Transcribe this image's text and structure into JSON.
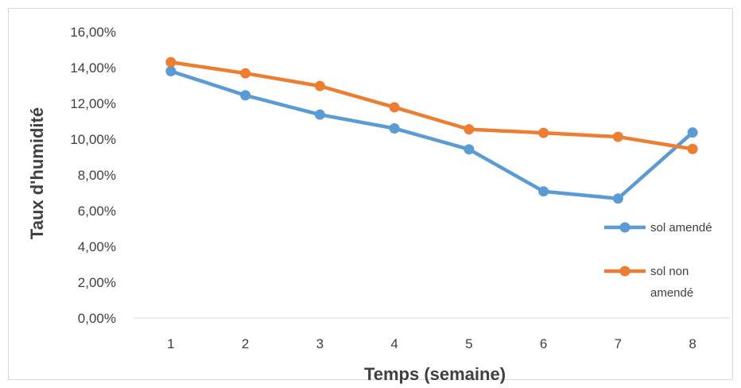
{
  "chart_data": {
    "type": "line",
    "title": "",
    "xlabel": "Temps (semaine)",
    "ylabel": "Taux d'humidité",
    "categories": [
      "1",
      "2",
      "3",
      "4",
      "5",
      "6",
      "7",
      "8"
    ],
    "ylim": [
      0,
      0.16
    ],
    "yticks": [
      0,
      0.02,
      0.04,
      0.06,
      0.08,
      0.1,
      0.12,
      0.14,
      0.16
    ],
    "ytick_labels": [
      "0,00%",
      "2,00%",
      "4,00%",
      "6,00%",
      "8,00%",
      "10,00%",
      "12,00%",
      "14,00%",
      "16,00%"
    ],
    "grid": false,
    "legend_position": "right",
    "series": [
      {
        "name": "sol amendé",
        "color": "#5B9BD5",
        "values": [
          0.138,
          0.1245,
          0.1137,
          0.106,
          0.0943,
          0.0708,
          0.0668,
          0.1037
        ]
      },
      {
        "name": "sol non amendé",
        "color": "#ED7D31",
        "values": [
          0.143,
          0.1368,
          0.1297,
          0.1178,
          0.1055,
          0.1035,
          0.1013,
          0.0945
        ]
      }
    ]
  },
  "legend": {
    "entries": [
      {
        "lines": [
          "sol amendé"
        ]
      },
      {
        "lines": [
          "sol non",
          "amendé"
        ]
      }
    ]
  }
}
